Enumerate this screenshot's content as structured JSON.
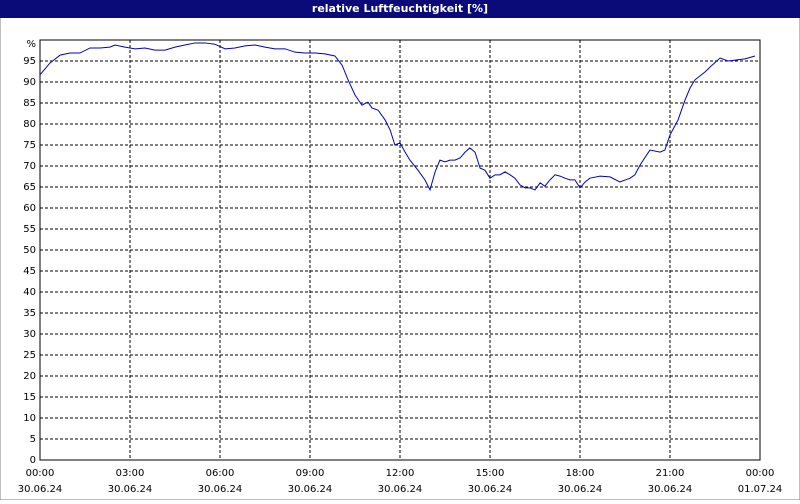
{
  "chart_data": {
    "type": "line",
    "title": "relative Luftfeuchtigkeit [%]",
    "y_label": "%",
    "xlim": [
      0,
      24
    ],
    "xticks": [
      {
        "value": 0,
        "label": "00:00"
      },
      {
        "value": 3,
        "label": "03:00"
      },
      {
        "value": 6,
        "label": "06:00"
      },
      {
        "value": 9,
        "label": "09:00"
      },
      {
        "value": 12,
        "label": "12:00"
      },
      {
        "value": 15,
        "label": "15:00"
      },
      {
        "value": 18,
        "label": "18:00"
      },
      {
        "value": 21,
        "label": "21:00"
      },
      {
        "value": 24,
        "label": "00:00"
      }
    ],
    "xtick_dates": [
      "30.06.24",
      "30.06.24",
      "30.06.24",
      "30.06.24",
      "30.06.24",
      "30.06.24",
      "30.06.24",
      "30.06.24",
      "01.07.24"
    ],
    "ylim": [
      0,
      100
    ],
    "yticks": [
      0,
      5,
      10,
      15,
      20,
      25,
      30,
      35,
      40,
      45,
      50,
      55,
      60,
      65,
      70,
      75,
      80,
      85,
      90,
      95
    ],
    "grid": true,
    "x": [
      0,
      0.33,
      0.67,
      1,
      1.33,
      1.67,
      2,
      2.33,
      2.5,
      2.83,
      3.17,
      3.5,
      3.83,
      4.17,
      4.5,
      4.83,
      5.17,
      5.5,
      5.83,
      6.17,
      6.5,
      6.83,
      7.17,
      7.5,
      7.83,
      8.17,
      8.5,
      8.83,
      9.17,
      9.5,
      9.83,
      10.07,
      10.27,
      10.5,
      10.73,
      10.93,
      11.07,
      11.27,
      11.5,
      11.67,
      11.83,
      12,
      12.17,
      12.33,
      12.6,
      12.83,
      13,
      13.17,
      13.33,
      13.5,
      13.67,
      13.83,
      14,
      14.17,
      14.33,
      14.5,
      14.67,
      14.83,
      15,
      15.17,
      15.33,
      15.5,
      15.67,
      15.83,
      16,
      16.17,
      16.33,
      16.5,
      16.67,
      16.83,
      17,
      17.17,
      17.33,
      17.5,
      17.67,
      17.83,
      18,
      18.17,
      18.33,
      18.67,
      19,
      19.33,
      19.67,
      19.83,
      20,
      20.33,
      20.67,
      20.83,
      21,
      21.27,
      21.5,
      21.67,
      21.83,
      22.17,
      22.4,
      22.67,
      22.93,
      23.17,
      23.5,
      23.83
    ],
    "series": [
      {
        "name": "relative Luftfeuchtigkeit",
        "color": "#0000c0",
        "values": [
          91.7,
          94.5,
          96.4,
          96.9,
          96.9,
          98.1,
          98.1,
          98.3,
          98.8,
          98.3,
          97.9,
          98.1,
          97.6,
          97.6,
          98.3,
          98.8,
          99.3,
          99.3,
          99.0,
          97.9,
          98.1,
          98.6,
          98.8,
          98.3,
          97.9,
          97.9,
          97.1,
          96.9,
          96.9,
          96.7,
          96.2,
          94.0,
          90.5,
          86.9,
          84.5,
          85.2,
          83.8,
          83.3,
          81.0,
          78.6,
          75.0,
          75.5,
          73.3,
          71.4,
          69.0,
          66.7,
          64.3,
          68.6,
          71.4,
          71.0,
          71.4,
          71.4,
          71.9,
          73.3,
          74.3,
          73.3,
          69.5,
          69.0,
          67.1,
          67.9,
          67.9,
          68.6,
          67.9,
          67.1,
          65.5,
          64.8,
          64.8,
          64.3,
          66.0,
          65.2,
          66.7,
          67.9,
          67.6,
          67.1,
          66.7,
          66.7,
          64.8,
          66.2,
          67.1,
          67.6,
          67.4,
          66.2,
          67.1,
          67.9,
          70.2,
          73.8,
          73.3,
          73.8,
          77.4,
          81.0,
          85.7,
          88.6,
          90.5,
          92.4,
          94.0,
          95.7,
          95.0,
          95.2,
          95.5,
          96.2
        ]
      }
    ]
  }
}
